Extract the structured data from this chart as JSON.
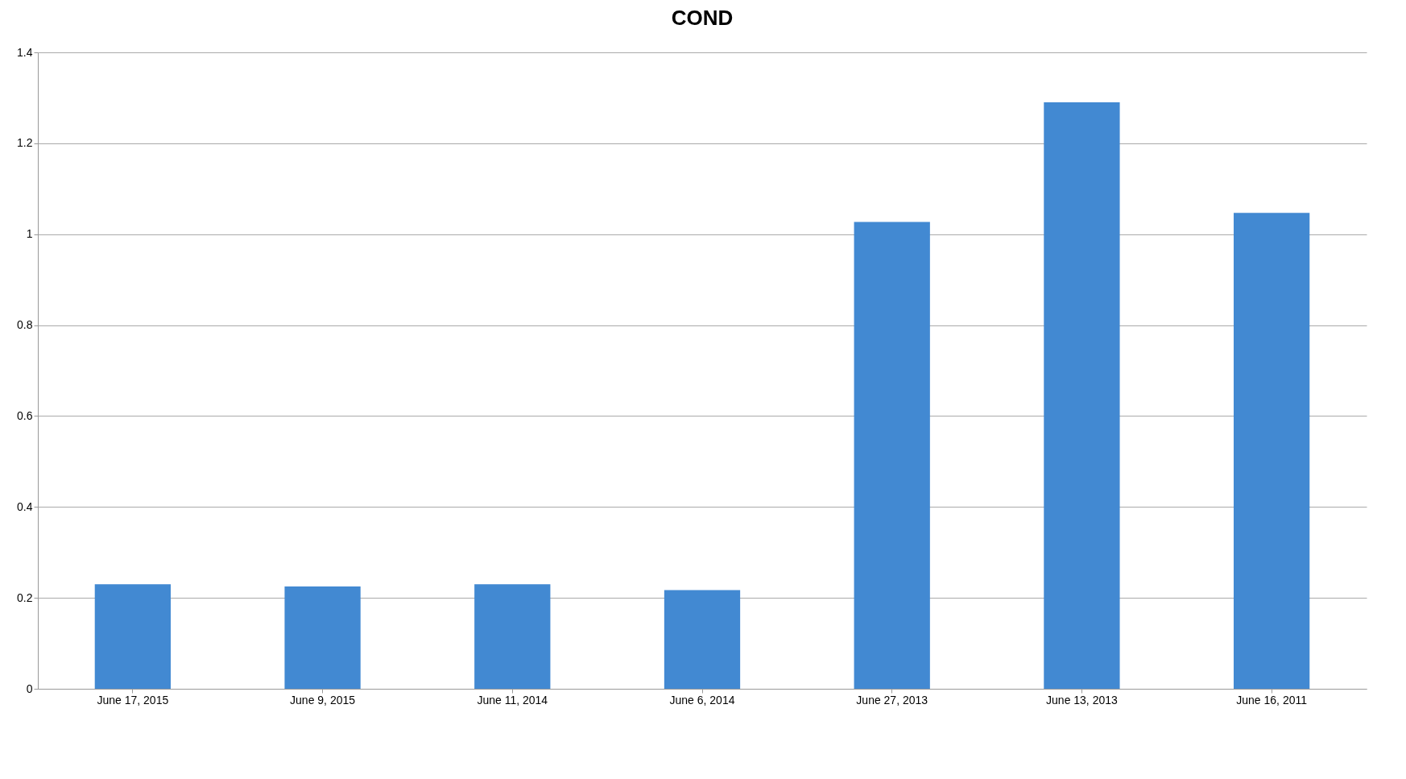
{
  "chart_data": {
    "type": "bar",
    "title": "COND",
    "categories": [
      "June 17, 2015",
      "June 9, 2015",
      "June 11, 2014",
      "June 6, 2014",
      "June 27, 2013",
      "June 13, 2013",
      "June 16, 2011"
    ],
    "values": [
      0.23,
      0.225,
      0.23,
      0.217,
      1.027,
      1.29,
      1.047
    ],
    "color": "#4289d2",
    "ylim": [
      0,
      1.4
    ],
    "yticks": [
      0,
      0.2,
      0.4,
      0.6,
      0.8,
      1,
      1.2,
      1.4
    ],
    "grid": "y"
  }
}
